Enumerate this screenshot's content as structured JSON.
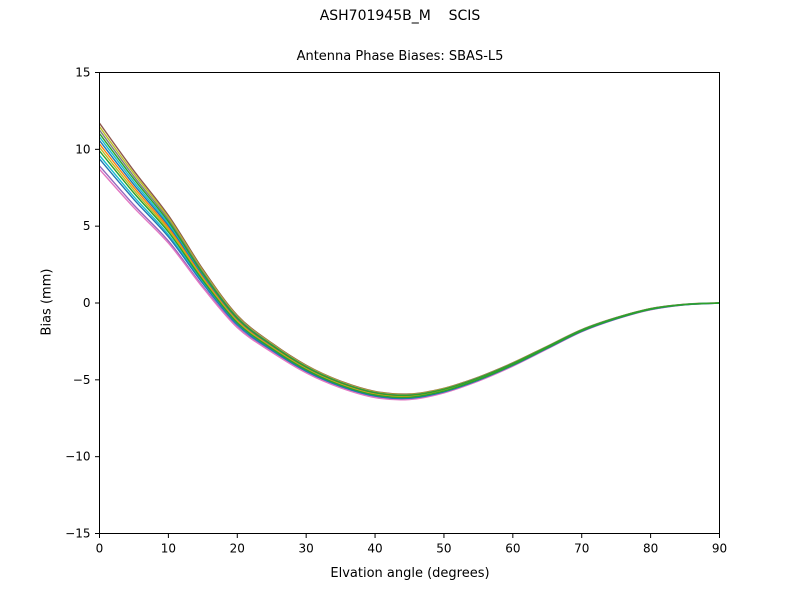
{
  "chart_data": {
    "type": "line",
    "title": "ASH701945B_M    SCIS",
    "subtitle": "Antenna Phase Biases: SBAS-L5",
    "xlabel": "Elvation angle (degrees)",
    "ylabel": "Bias (mm)",
    "xlim": [
      0,
      90
    ],
    "ylim": [
      -15,
      15
    ],
    "xticks": [
      0,
      10,
      20,
      30,
      40,
      50,
      60,
      70,
      80,
      90
    ],
    "yticks": [
      -15,
      -10,
      -5,
      0,
      5,
      10,
      15
    ],
    "grid": false,
    "legend_position": "none",
    "x": [
      0,
      5,
      10,
      15,
      20,
      25,
      30,
      35,
      40,
      45,
      50,
      55,
      60,
      65,
      70,
      75,
      80,
      85,
      90
    ],
    "center": [
      10.2,
      7.4,
      4.8,
      1.6,
      -1.2,
      -2.9,
      -4.3,
      -5.3,
      -5.95,
      -6.1,
      -5.7,
      -4.95,
      -4.0,
      -2.9,
      -1.8,
      -1.0,
      -0.4,
      -0.1,
      0.0
    ],
    "envelope": [
      1.5,
      1.2,
      0.9,
      0.6,
      0.4,
      0.3,
      0.25,
      0.22,
      0.2,
      0.18,
      0.15,
      0.13,
      0.11,
      0.09,
      0.07,
      0.05,
      0.04,
      0.02,
      0.01
    ],
    "series": [
      {
        "color": "#8c564b",
        "offset": 1.0
      },
      {
        "color": "#9467bd",
        "offset": -0.85
      },
      {
        "color": "#e377c2",
        "offset": -1.0
      },
      {
        "color": "#bcbd22",
        "offset": 0.85
      },
      {
        "color": "#7f7f7f",
        "offset": 0.7
      },
      {
        "color": "#17becf",
        "offset": 0.4
      },
      {
        "color": "#1f77b4",
        "offset": 0.25
      },
      {
        "color": "#ff7f0e",
        "offset": 0.1
      },
      {
        "color": "#bcbd22",
        "offset": -0.05
      },
      {
        "color": "#17becf",
        "offset": -0.4
      },
      {
        "color": "#1f77b4",
        "offset": -0.55
      },
      {
        "color": "#2ca02c",
        "offset": 0.55
      },
      {
        "color": "#2ca02c",
        "offset": -0.2
      }
    ],
    "line_width": 1.4,
    "axis_color": "#000000",
    "background_color": "#ffffff"
  }
}
